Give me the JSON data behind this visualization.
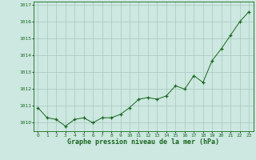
{
  "x": [
    0,
    1,
    2,
    3,
    4,
    5,
    6,
    7,
    8,
    9,
    10,
    11,
    12,
    13,
    14,
    15,
    16,
    17,
    18,
    19,
    20,
    21,
    22,
    23
  ],
  "y": [
    1010.9,
    1010.3,
    1010.2,
    1009.8,
    1010.2,
    1010.3,
    1010.0,
    1010.3,
    1010.3,
    1010.5,
    1010.9,
    1011.4,
    1011.5,
    1011.4,
    1011.6,
    1012.2,
    1012.0,
    1012.8,
    1012.4,
    1013.7,
    1014.4,
    1015.2,
    1016.0,
    1016.6
  ],
  "ylim": [
    1009.5,
    1017.2
  ],
  "yticks": [
    1010,
    1011,
    1012,
    1013,
    1014,
    1015,
    1016,
    1017
  ],
  "xticks": [
    0,
    1,
    2,
    3,
    4,
    5,
    6,
    7,
    8,
    9,
    10,
    11,
    12,
    13,
    14,
    15,
    16,
    17,
    18,
    19,
    20,
    21,
    22,
    23
  ],
  "xlabel": "Graphe pression niveau de la mer (hPa)",
  "line_color": "#1a6620",
  "marker": "+",
  "background_color": "#cce8e0",
  "grid_color": "#a8c8be",
  "tick_label_color": "#1a6620",
  "xlabel_color": "#1a6620",
  "axis_color": "#1a6620"
}
